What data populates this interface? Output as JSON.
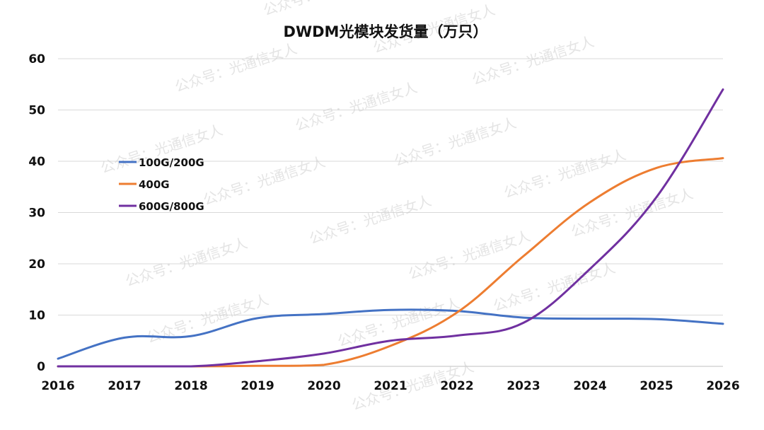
{
  "chart_data": {
    "type": "line",
    "title": "DWDM光模块发货量（万只）",
    "xlabel": "",
    "ylabel": "",
    "categories": [
      "2016",
      "2017",
      "2018",
      "2019",
      "2020",
      "2021",
      "2022",
      "2023",
      "2024",
      "2025",
      "2026"
    ],
    "ylim": [
      0,
      60
    ],
    "yticks": [
      0,
      10,
      20,
      30,
      40,
      50,
      60
    ],
    "grid": true,
    "legend_position": "left",
    "series": [
      {
        "name": "100G/200G",
        "color": "#4472C4",
        "values": [
          1.5,
          5.6,
          5.9,
          9.4,
          10.2,
          11.0,
          10.8,
          9.5,
          9.3,
          9.2,
          8.3
        ]
      },
      {
        "name": "400G",
        "color": "#ED7D31",
        "values": [
          0,
          0,
          0,
          0.1,
          0.3,
          4.0,
          10.5,
          21.5,
          32.0,
          38.7,
          40.6
        ]
      },
      {
        "name": "600G/800G",
        "color": "#7030A0",
        "values": [
          0,
          0,
          0,
          1.0,
          2.5,
          5.0,
          6.0,
          8.5,
          19.0,
          33.0,
          54.0
        ]
      }
    ],
    "watermark": "公众号：光通信女人"
  }
}
